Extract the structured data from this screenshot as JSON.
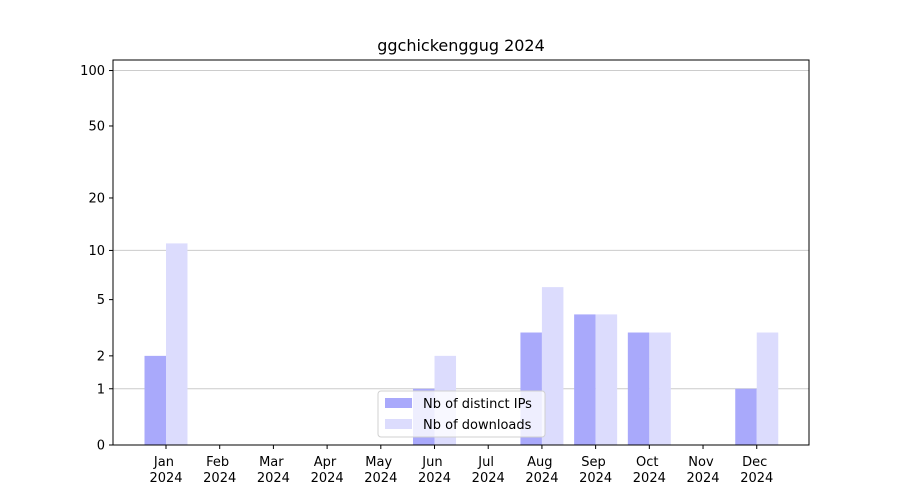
{
  "chart_data": {
    "type": "bar",
    "title": "ggchickenggug 2024",
    "categories": [
      "Jan\n2024",
      "Feb\n2024",
      "Mar\n2024",
      "Apr\n2024",
      "May\n2024",
      "Jun\n2024",
      "Jul\n2024",
      "Aug\n2024",
      "Sep\n2024",
      "Oct\n2024",
      "Nov\n2024",
      "Dec\n2024"
    ],
    "series": [
      {
        "name": "Nb of distinct IPs",
        "color": "#a9a9fb",
        "values": [
          2,
          0,
          0,
          0,
          0,
          1,
          0,
          3,
          4,
          3,
          0,
          1
        ]
      },
      {
        "name": "Nb of downloads",
        "color": "#dcdcfd",
        "values": [
          11,
          0,
          0,
          0,
          0,
          2,
          0,
          6,
          4,
          3,
          0,
          3
        ]
      }
    ],
    "yscale": "log1p",
    "ylim": [
      0,
      114
    ],
    "yticks": [
      0,
      1,
      2,
      5,
      10,
      20,
      50,
      100
    ],
    "ygrid": [
      1,
      10,
      100
    ],
    "legend": "lower center"
  }
}
